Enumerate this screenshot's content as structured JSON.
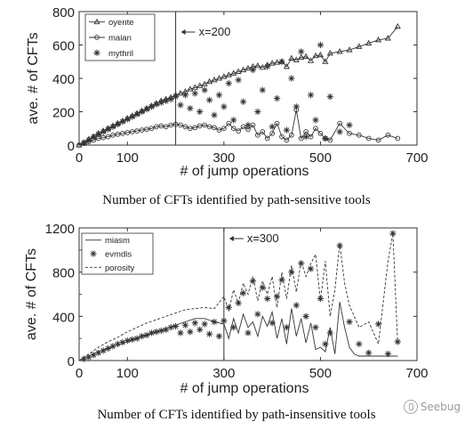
{
  "chart_data": [
    {
      "type": "line",
      "title": "",
      "xlabel": "# of jump operations",
      "ylabel": "ave. # of CFTs",
      "xlim": [
        0,
        700
      ],
      "ylim": [
        0,
        800
      ],
      "xticks": [
        0,
        100,
        300,
        500,
        700
      ],
      "xtick_labels": [
        "0",
        "100",
        "300",
        "500",
        "700"
      ],
      "yticks": [
        0,
        200,
        400,
        600,
        800
      ],
      "ytick_labels": [
        "0",
        "200",
        "400",
        "600",
        "800"
      ],
      "grid": false,
      "legend_position": "top-left",
      "caption": "Number of CFTs identified by path-sensitive tools",
      "annotation": {
        "text": "x=200",
        "x": 200
      },
      "series": [
        {
          "name": "oyente",
          "marker": "triangle",
          "line": "solid",
          "color": "#333333",
          "x": [
            0,
            10,
            20,
            30,
            40,
            50,
            60,
            70,
            80,
            90,
            100,
            110,
            120,
            130,
            140,
            150,
            160,
            170,
            180,
            190,
            200,
            210,
            220,
            230,
            240,
            250,
            260,
            270,
            280,
            290,
            300,
            310,
            320,
            330,
            340,
            350,
            360,
            370,
            380,
            390,
            400,
            410,
            420,
            430,
            440,
            450,
            460,
            470,
            480,
            490,
            500,
            510,
            520,
            540,
            560,
            580,
            600,
            620,
            640,
            660
          ],
          "y": [
            0,
            15,
            35,
            50,
            70,
            85,
            100,
            115,
            130,
            145,
            160,
            175,
            190,
            205,
            220,
            235,
            250,
            265,
            275,
            285,
            300,
            310,
            320,
            335,
            345,
            355,
            365,
            380,
            390,
            400,
            410,
            420,
            430,
            440,
            450,
            460,
            470,
            475,
            465,
            480,
            490,
            495,
            500,
            470,
            520,
            510,
            525,
            530,
            505,
            535,
            540,
            500,
            550,
            560,
            570,
            590,
            610,
            630,
            640,
            710
          ]
        },
        {
          "name": "maian",
          "marker": "circle",
          "line": "solid",
          "color": "#333333",
          "x": [
            0,
            10,
            20,
            30,
            40,
            50,
            60,
            70,
            80,
            90,
            100,
            110,
            120,
            130,
            140,
            150,
            160,
            170,
            180,
            190,
            200,
            210,
            220,
            230,
            240,
            250,
            260,
            270,
            280,
            290,
            300,
            310,
            320,
            330,
            340,
            350,
            360,
            370,
            380,
            390,
            400,
            410,
            420,
            430,
            440,
            450,
            460,
            470,
            480,
            490,
            500,
            510,
            520,
            540,
            560,
            580,
            600,
            620,
            640,
            660
          ],
          "y": [
            0,
            10,
            20,
            30,
            40,
            45,
            50,
            60,
            65,
            70,
            75,
            80,
            85,
            90,
            95,
            100,
            110,
            115,
            110,
            120,
            125,
            120,
            110,
            100,
            105,
            115,
            120,
            110,
            105,
            90,
            100,
            130,
            100,
            85,
            110,
            95,
            120,
            60,
            80,
            40,
            70,
            130,
            50,
            30,
            60,
            210,
            40,
            80,
            50,
            100,
            70,
            40,
            30,
            130,
            70,
            60,
            40,
            30,
            60,
            40
          ]
        },
        {
          "name": "mythril",
          "marker": "star",
          "line": "none",
          "color": "#333333",
          "x": [
            10,
            20,
            30,
            40,
            50,
            60,
            70,
            80,
            90,
            100,
            110,
            120,
            130,
            140,
            150,
            160,
            170,
            180,
            190,
            200,
            210,
            220,
            230,
            240,
            250,
            260,
            270,
            280,
            290,
            300,
            310,
            320,
            330,
            340,
            350,
            360,
            370,
            380,
            390,
            400,
            410,
            420,
            430,
            440,
            450,
            460,
            470,
            480,
            490,
            500,
            510,
            520,
            540,
            560
          ],
          "y": [
            15,
            30,
            50,
            65,
            80,
            95,
            110,
            125,
            140,
            155,
            170,
            185,
            200,
            215,
            230,
            245,
            255,
            265,
            275,
            290,
            240,
            300,
            220,
            310,
            200,
            330,
            270,
            180,
            300,
            230,
            370,
            150,
            390,
            260,
            120,
            450,
            200,
            330,
            470,
            110,
            280,
            500,
            90,
            400,
            230,
            560,
            50,
            300,
            150,
            600,
            40,
            290,
            80,
            120
          ]
        }
      ]
    },
    {
      "type": "line",
      "title": "",
      "xlabel": "# of jump operations",
      "ylabel": "ave. # of CFTs",
      "xlim": [
        0,
        700
      ],
      "ylim": [
        0,
        1200
      ],
      "xticks": [
        0,
        100,
        300,
        500,
        700
      ],
      "xtick_labels": [
        "0",
        "100",
        "300",
        "500",
        "700"
      ],
      "yticks": [
        0,
        400,
        800,
        1200
      ],
      "ytick_labels": [
        "0",
        "400",
        "800",
        "1200"
      ],
      "minor_yticks": [
        200,
        600,
        1000
      ],
      "grid": false,
      "legend_position": "top-left",
      "caption": "Number of CFTs identified by path-insensitive tools",
      "annotation": {
        "text": "x=300",
        "x": 300
      },
      "series": [
        {
          "name": "miasm",
          "marker": "none",
          "line": "solid",
          "color": "#333333",
          "x": [
            0,
            20,
            40,
            60,
            80,
            100,
            120,
            140,
            160,
            180,
            200,
            220,
            240,
            260,
            280,
            300,
            310,
            320,
            330,
            340,
            350,
            360,
            370,
            380,
            390,
            400,
            410,
            420,
            430,
            440,
            450,
            460,
            470,
            480,
            490,
            500,
            510,
            520,
            530,
            540,
            550,
            560,
            570,
            580,
            600,
            620,
            640,
            660
          ],
          "y": [
            0,
            40,
            80,
            110,
            140,
            170,
            200,
            230,
            260,
            290,
            320,
            350,
            380,
            380,
            350,
            330,
            200,
            380,
            250,
            420,
            300,
            350,
            220,
            400,
            310,
            440,
            200,
            380,
            150,
            470,
            220,
            380,
            160,
            340,
            100,
            120,
            80,
            300,
            60,
            530,
            300,
            120,
            60,
            40,
            40,
            40,
            40,
            40
          ]
        },
        {
          "name": "evmdis",
          "marker": "star",
          "line": "none",
          "color": "#333333",
          "x": [
            10,
            20,
            30,
            40,
            50,
            60,
            70,
            80,
            90,
            100,
            110,
            120,
            130,
            140,
            150,
            160,
            170,
            180,
            190,
            200,
            210,
            220,
            230,
            240,
            250,
            260,
            270,
            280,
            290,
            300,
            310,
            320,
            330,
            340,
            350,
            360,
            370,
            380,
            390,
            400,
            410,
            420,
            430,
            440,
            450,
            460,
            470,
            480,
            490,
            500,
            510,
            520,
            540,
            560,
            580,
            600,
            620,
            640,
            650,
            660
          ],
          "y": [
            15,
            30,
            50,
            70,
            90,
            110,
            130,
            150,
            165,
            180,
            190,
            200,
            220,
            230,
            250,
            260,
            270,
            280,
            300,
            310,
            250,
            320,
            260,
            340,
            280,
            330,
            240,
            350,
            220,
            360,
            480,
            300,
            520,
            610,
            250,
            720,
            420,
            660,
            560,
            340,
            580,
            730,
            300,
            800,
            500,
            880,
            400,
            830,
            300,
            560,
            150,
            250,
            1040,
            350,
            150,
            70,
            330,
            60,
            1150,
            170
          ]
        },
        {
          "name": "porosity",
          "marker": "none",
          "line": "dashed",
          "color": "#333333",
          "x": [
            0,
            20,
            40,
            60,
            80,
            100,
            120,
            140,
            160,
            180,
            200,
            220,
            240,
            260,
            280,
            300,
            310,
            320,
            330,
            340,
            350,
            360,
            370,
            380,
            390,
            400,
            410,
            420,
            430,
            440,
            450,
            460,
            470,
            480,
            490,
            500,
            510,
            520,
            530,
            540,
            550,
            560,
            570,
            580,
            600,
            620,
            640,
            650,
            660
          ],
          "y": [
            0,
            60,
            120,
            170,
            210,
            260,
            300,
            340,
            370,
            400,
            430,
            460,
            470,
            480,
            470,
            580,
            450,
            640,
            520,
            700,
            600,
            760,
            540,
            720,
            600,
            760,
            480,
            800,
            560,
            860,
            620,
            900,
            760,
            880,
            960,
            540,
            900,
            400,
            640,
            1060,
            700,
            500,
            400,
            300,
            350,
            150,
            900,
            1150,
            150
          ]
        }
      ]
    }
  ],
  "watermark": {
    "label": "Seebug"
  }
}
